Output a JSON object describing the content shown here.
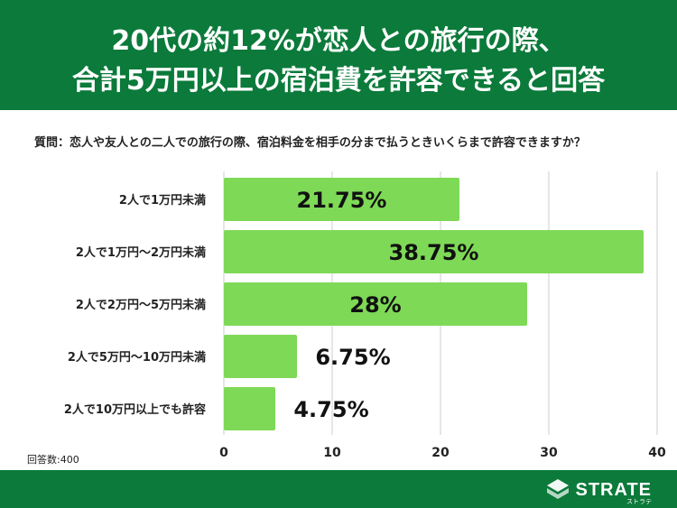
{
  "header": {
    "title_line1": "20代の約12%が恋人との旅行の際、",
    "title_line2": "合計5万円以上の宿泊費を許容できると回答"
  },
  "question": "質問：恋人や友人との二人での旅行の際、宿泊料金を相手の分まで払うときいくらまで許容できますか？",
  "chart_data": {
    "type": "bar",
    "orientation": "horizontal",
    "categories": [
      "2人で1万円未満",
      "2人で1万円〜2万円未満",
      "2人で2万円〜5万円未満",
      "2人で5万円〜10万円未満",
      "2人で10万円以上でも許容"
    ],
    "values": [
      21.75,
      38.75,
      28,
      6.75,
      4.75
    ],
    "value_labels": [
      "21.75%",
      "38.75%",
      "28%",
      "6.75%",
      "4.75%"
    ],
    "xlim": [
      0,
      40
    ],
    "xticks": [
      0,
      10,
      20,
      30,
      40
    ],
    "grid": true,
    "bar_color": "#7ed957",
    "grid_color": "#cccccc",
    "note": "回答数:400"
  },
  "brand": {
    "name": "STRATE",
    "sub": "ストラテ",
    "primary_color": "#0b7a3a"
  }
}
